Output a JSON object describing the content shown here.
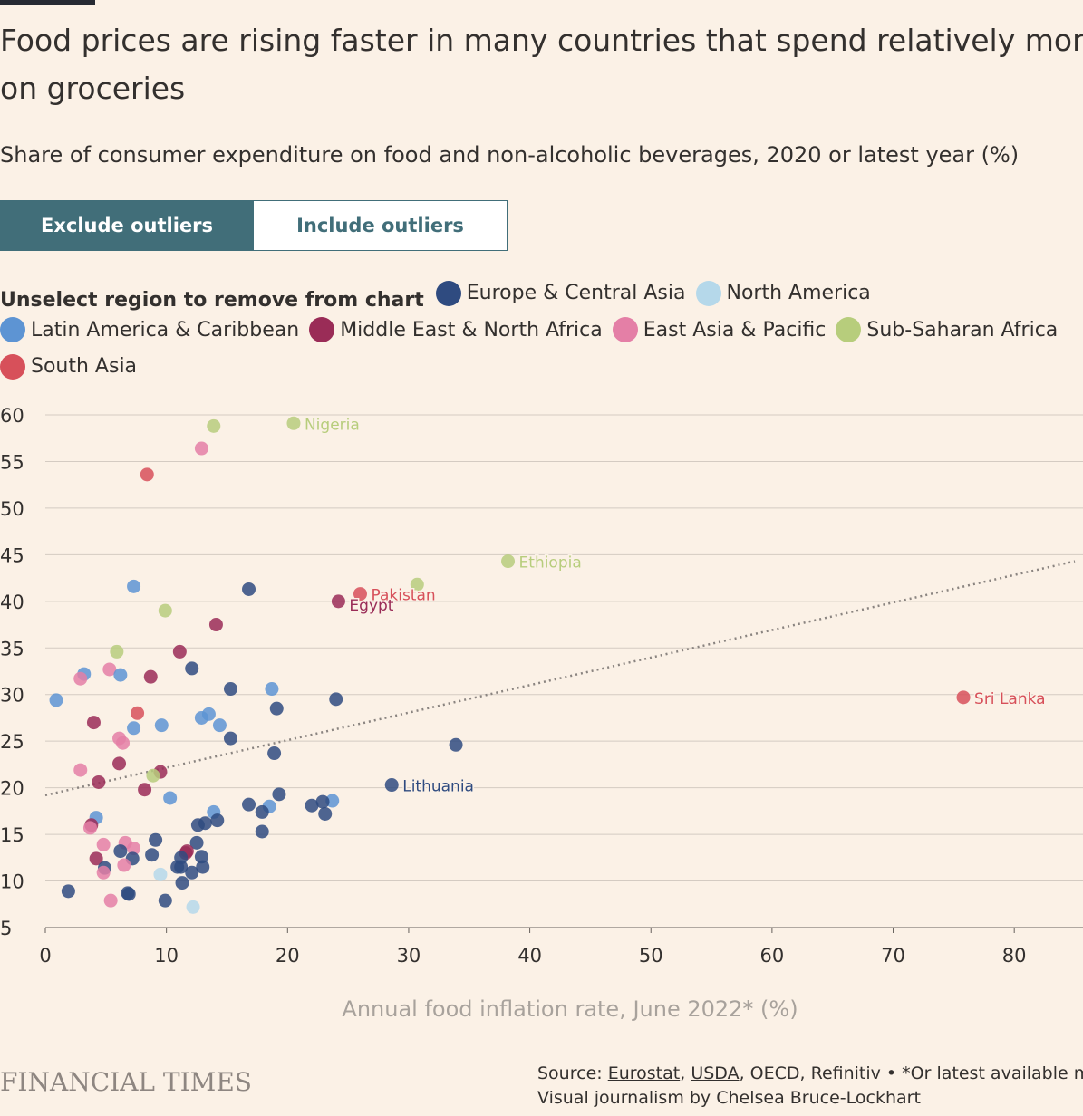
{
  "header": {
    "title": "Food prices are rising faster in many countries that spend relatively more on groceries",
    "subtitle": "Share of consumer expenditure on food and non-alcoholic beverages, 2020 or latest year (%)"
  },
  "toggle": {
    "exclude_label": "Exclude outliers",
    "include_label": "Include outliers",
    "selected": "exclude"
  },
  "legend": {
    "prompt": "Unselect region to remove from chart",
    "regions": [
      {
        "name": "Europe & Central Asia",
        "color": "#2f4b80"
      },
      {
        "name": "North America",
        "color": "#b5d8ea"
      },
      {
        "name": "Latin America & Caribbean",
        "color": "#5d94d3"
      },
      {
        "name": "Middle East & North Africa",
        "color": "#9a2c57"
      },
      {
        "name": "East Asia & Pacific",
        "color": "#e47fa6"
      },
      {
        "name": "Sub-Saharan Africa",
        "color": "#b7cd7c"
      },
      {
        "name": "South Asia",
        "color": "#d7505a"
      }
    ]
  },
  "footer": {
    "brand": "FINANCIAL TIMES",
    "source_prefix": "Source: ",
    "source_links": [
      "Eurostat",
      "USDA"
    ],
    "source_rest": ", OECD, Refinitiv • *Or latest available month",
    "credit": "Visual journalism by Chelsea Bruce-Lockhart"
  },
  "chart_data": {
    "type": "scatter",
    "xlabel": "Annual food inflation rate, June 2022* (%)",
    "ylabel": "",
    "xlim": [
      0,
      85
    ],
    "ylim": [
      5,
      62
    ],
    "xticks": [
      0,
      10,
      20,
      30,
      40,
      50,
      60,
      70,
      80
    ],
    "yticks": [
      5,
      10,
      15,
      20,
      25,
      30,
      35,
      40,
      45,
      50,
      55,
      60
    ],
    "grid": "horizontal",
    "trendline": {
      "style": "dotted",
      "x": [
        0,
        85
      ],
      "y": [
        19.2,
        44.3
      ]
    },
    "points": [
      {
        "x": 20.5,
        "y": 59.1,
        "region": "Sub-Saharan Africa",
        "label": "Nigeria"
      },
      {
        "x": 13.9,
        "y": 58.8,
        "region": "Sub-Saharan Africa"
      },
      {
        "x": 12.9,
        "y": 56.4,
        "region": "East Asia & Pacific"
      },
      {
        "x": 8.4,
        "y": 53.6,
        "region": "South Asia"
      },
      {
        "x": 38.2,
        "y": 44.3,
        "region": "Sub-Saharan Africa",
        "label": "Ethiopia"
      },
      {
        "x": 30.7,
        "y": 41.8,
        "region": "Sub-Saharan Africa"
      },
      {
        "x": 26.0,
        "y": 40.8,
        "region": "South Asia",
        "label": "Pakistan"
      },
      {
        "x": 24.2,
        "y": 40.0,
        "region": "Middle East & North Africa",
        "label": "Egypt"
      },
      {
        "x": 7.3,
        "y": 41.6,
        "region": "Latin America & Caribbean"
      },
      {
        "x": 16.8,
        "y": 41.3,
        "region": "Europe & Central Asia"
      },
      {
        "x": 9.9,
        "y": 39.0,
        "region": "Sub-Saharan Africa"
      },
      {
        "x": 14.1,
        "y": 37.5,
        "region": "Middle East & North Africa"
      },
      {
        "x": 5.9,
        "y": 34.6,
        "region": "Sub-Saharan Africa"
      },
      {
        "x": 11.1,
        "y": 34.6,
        "region": "Middle East & North Africa"
      },
      {
        "x": 12.1,
        "y": 32.8,
        "region": "Europe & Central Asia"
      },
      {
        "x": 5.3,
        "y": 32.7,
        "region": "East Asia & Pacific"
      },
      {
        "x": 3.2,
        "y": 32.2,
        "region": "Latin America & Caribbean"
      },
      {
        "x": 6.2,
        "y": 32.1,
        "region": "Latin America & Caribbean"
      },
      {
        "x": 8.7,
        "y": 31.9,
        "region": "Middle East & North Africa"
      },
      {
        "x": 2.9,
        "y": 31.7,
        "region": "East Asia & Pacific"
      },
      {
        "x": 15.3,
        "y": 30.6,
        "region": "Europe & Central Asia"
      },
      {
        "x": 18.7,
        "y": 30.6,
        "region": "Latin America & Caribbean"
      },
      {
        "x": 0.9,
        "y": 29.4,
        "region": "Latin America & Caribbean"
      },
      {
        "x": 24.0,
        "y": 29.5,
        "region": "Europe & Central Asia"
      },
      {
        "x": 75.8,
        "y": 29.7,
        "region": "South Asia",
        "label": "Sri Lanka"
      },
      {
        "x": 19.1,
        "y": 28.5,
        "region": "Europe & Central Asia"
      },
      {
        "x": 7.6,
        "y": 28.0,
        "region": "South Asia"
      },
      {
        "x": 13.5,
        "y": 27.9,
        "region": "Latin America & Caribbean"
      },
      {
        "x": 12.9,
        "y": 27.5,
        "region": "Latin America & Caribbean"
      },
      {
        "x": 4.0,
        "y": 27.0,
        "region": "Middle East & North Africa"
      },
      {
        "x": 9.6,
        "y": 26.7,
        "region": "Latin America & Caribbean"
      },
      {
        "x": 14.4,
        "y": 26.7,
        "region": "Latin America & Caribbean"
      },
      {
        "x": 7.3,
        "y": 26.4,
        "region": "Latin America & Caribbean"
      },
      {
        "x": 6.1,
        "y": 25.3,
        "region": "East Asia & Pacific"
      },
      {
        "x": 15.3,
        "y": 25.3,
        "region": "Europe & Central Asia"
      },
      {
        "x": 6.4,
        "y": 24.8,
        "region": "East Asia & Pacific"
      },
      {
        "x": 33.9,
        "y": 24.6,
        "region": "Europe & Central Asia"
      },
      {
        "x": 18.9,
        "y": 23.7,
        "region": "Europe & Central Asia"
      },
      {
        "x": 6.1,
        "y": 22.6,
        "region": "Middle East & North Africa"
      },
      {
        "x": 2.9,
        "y": 21.9,
        "region": "East Asia & Pacific"
      },
      {
        "x": 9.5,
        "y": 21.7,
        "region": "Middle East & North Africa"
      },
      {
        "x": 8.9,
        "y": 21.3,
        "region": "Sub-Saharan Africa"
      },
      {
        "x": 4.4,
        "y": 20.6,
        "region": "Middle East & North Africa"
      },
      {
        "x": 28.6,
        "y": 20.3,
        "region": "Europe & Central Asia",
        "label": "Lithuania"
      },
      {
        "x": 8.2,
        "y": 19.8,
        "region": "Middle East & North Africa"
      },
      {
        "x": 19.3,
        "y": 19.3,
        "region": "Europe & Central Asia"
      },
      {
        "x": 10.3,
        "y": 18.9,
        "region": "Latin America & Caribbean"
      },
      {
        "x": 23.7,
        "y": 18.6,
        "region": "Latin America & Caribbean"
      },
      {
        "x": 22.9,
        "y": 18.5,
        "region": "Europe & Central Asia"
      },
      {
        "x": 16.8,
        "y": 18.2,
        "region": "Europe & Central Asia"
      },
      {
        "x": 22.0,
        "y": 18.1,
        "region": "Europe & Central Asia"
      },
      {
        "x": 18.5,
        "y": 18.0,
        "region": "Latin America & Caribbean"
      },
      {
        "x": 17.9,
        "y": 17.4,
        "region": "Europe & Central Asia"
      },
      {
        "x": 13.9,
        "y": 17.4,
        "region": "Latin America & Caribbean"
      },
      {
        "x": 23.1,
        "y": 17.2,
        "region": "Europe & Central Asia"
      },
      {
        "x": 4.2,
        "y": 16.8,
        "region": "Latin America & Caribbean"
      },
      {
        "x": 14.2,
        "y": 16.5,
        "region": "Europe & Central Asia"
      },
      {
        "x": 13.2,
        "y": 16.2,
        "region": "Europe & Central Asia"
      },
      {
        "x": 12.6,
        "y": 16.0,
        "region": "Europe & Central Asia"
      },
      {
        "x": 3.8,
        "y": 16.0,
        "region": "Middle East & North Africa"
      },
      {
        "x": 3.7,
        "y": 15.7,
        "region": "East Asia & Pacific"
      },
      {
        "x": 17.9,
        "y": 15.3,
        "region": "Europe & Central Asia"
      },
      {
        "x": 9.1,
        "y": 14.4,
        "region": "Europe & Central Asia"
      },
      {
        "x": 6.6,
        "y": 14.1,
        "region": "East Asia & Pacific"
      },
      {
        "x": 12.5,
        "y": 14.1,
        "region": "Europe & Central Asia"
      },
      {
        "x": 4.8,
        "y": 13.9,
        "region": "East Asia & Pacific"
      },
      {
        "x": 7.3,
        "y": 13.5,
        "region": "East Asia & Pacific"
      },
      {
        "x": 6.2,
        "y": 13.2,
        "region": "Europe & Central Asia"
      },
      {
        "x": 11.7,
        "y": 13.2,
        "region": "Middle East & North Africa"
      },
      {
        "x": 11.6,
        "y": 13.0,
        "region": "Middle East & North Africa"
      },
      {
        "x": 8.8,
        "y": 12.8,
        "region": "Europe & Central Asia"
      },
      {
        "x": 12.9,
        "y": 12.6,
        "region": "Europe & Central Asia"
      },
      {
        "x": 11.2,
        "y": 12.5,
        "region": "Europe & Central Asia"
      },
      {
        "x": 7.2,
        "y": 12.4,
        "region": "Europe & Central Asia"
      },
      {
        "x": 4.2,
        "y": 12.4,
        "region": "Middle East & North Africa"
      },
      {
        "x": 6.5,
        "y": 11.7,
        "region": "East Asia & Pacific"
      },
      {
        "x": 10.9,
        "y": 11.5,
        "region": "Europe & Central Asia"
      },
      {
        "x": 11.2,
        "y": 11.5,
        "region": "Europe & Central Asia"
      },
      {
        "x": 13.0,
        "y": 11.5,
        "region": "Europe & Central Asia"
      },
      {
        "x": 4.9,
        "y": 11.4,
        "region": "Europe & Central Asia"
      },
      {
        "x": 12.1,
        "y": 10.9,
        "region": "Europe & Central Asia"
      },
      {
        "x": 4.8,
        "y": 10.9,
        "region": "East Asia & Pacific"
      },
      {
        "x": 9.5,
        "y": 10.7,
        "region": "North America"
      },
      {
        "x": 11.3,
        "y": 9.8,
        "region": "Europe & Central Asia"
      },
      {
        "x": 1.9,
        "y": 8.9,
        "region": "Europe & Central Asia"
      },
      {
        "x": 6.8,
        "y": 8.7,
        "region": "Europe & Central Asia"
      },
      {
        "x": 6.9,
        "y": 8.6,
        "region": "Europe & Central Asia"
      },
      {
        "x": 9.9,
        "y": 7.9,
        "region": "Europe & Central Asia"
      },
      {
        "x": 5.4,
        "y": 7.9,
        "region": "East Asia & Pacific"
      },
      {
        "x": 12.2,
        "y": 7.2,
        "region": "North America"
      }
    ]
  }
}
